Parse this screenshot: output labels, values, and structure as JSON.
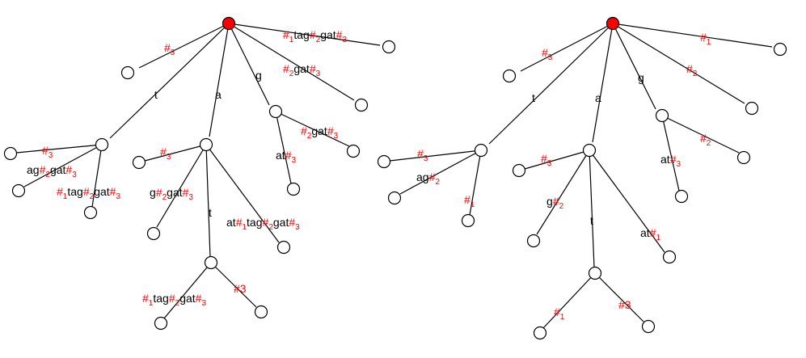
{
  "colors": {
    "marker": "#ff0000",
    "text": "#000000",
    "node_fill": "#ffffff",
    "root_fill": "#ff0000"
  },
  "trees": [
    {
      "name": "tree-left",
      "labels": [
        {
          "id": "l-s3",
          "parts": [
            [
              "r",
              "#"
            ],
            [
              "rs",
              "3"
            ]
          ]
        },
        {
          "id": "l-t",
          "parts": [
            [
              "b",
              "t"
            ]
          ]
        },
        {
          "id": "l-a",
          "parts": [
            [
              "b",
              "a"
            ]
          ]
        },
        {
          "id": "l-g",
          "parts": [
            [
              "b",
              "g"
            ]
          ]
        },
        {
          "id": "l-top",
          "parts": [
            [
              "r",
              "#"
            ],
            [
              "rs",
              "1"
            ],
            [
              "b",
              "tag"
            ],
            [
              "r",
              "#"
            ],
            [
              "rs",
              "2"
            ],
            [
              "b",
              "gat"
            ],
            [
              "r",
              "#"
            ],
            [
              "rs",
              "3"
            ]
          ]
        },
        {
          "id": "l-2gat",
          "parts": [
            [
              "r",
              "#"
            ],
            [
              "rs",
              "2"
            ],
            [
              "b",
              "gat"
            ],
            [
              "r",
              "#"
            ],
            [
              "rs",
              "3"
            ]
          ]
        },
        {
          "id": "l-t-s3",
          "parts": [
            [
              "r",
              "#"
            ],
            [
              "rs",
              "3"
            ]
          ]
        },
        {
          "id": "l-t-ag",
          "parts": [
            [
              "b",
              "ag"
            ],
            [
              "r",
              "#"
            ],
            [
              "rs",
              "2"
            ],
            [
              "b",
              "gat"
            ],
            [
              "r",
              "#"
            ],
            [
              "rs",
              "3"
            ]
          ]
        },
        {
          "id": "l-t-1tag",
          "parts": [
            [
              "r",
              "#"
            ],
            [
              "rs",
              "1"
            ],
            [
              "b",
              "tag"
            ],
            [
              "r",
              "#"
            ],
            [
              "rs",
              "2"
            ],
            [
              "b",
              "gat"
            ],
            [
              "r",
              "#"
            ],
            [
              "rs",
              "3"
            ]
          ]
        },
        {
          "id": "l-a-s3",
          "parts": [
            [
              "r",
              "#"
            ],
            [
              "rs",
              "3"
            ]
          ]
        },
        {
          "id": "l-a-g",
          "parts": [
            [
              "b",
              "g"
            ],
            [
              "r",
              "#"
            ],
            [
              "rs",
              "2"
            ],
            [
              "b",
              "gat"
            ],
            [
              "r",
              "#"
            ],
            [
              "rs",
              "3"
            ]
          ]
        },
        {
          "id": "l-a-t",
          "parts": [
            [
              "b",
              "t"
            ]
          ]
        },
        {
          "id": "l-a-at",
          "parts": [
            [
              "b",
              "at"
            ],
            [
              "r",
              "#"
            ],
            [
              "rs",
              "1"
            ],
            [
              "b",
              "tag"
            ],
            [
              "r",
              "#"
            ],
            [
              "rs",
              "2"
            ],
            [
              "b",
              "gat"
            ],
            [
              "r",
              "#"
            ],
            [
              "rs",
              "3"
            ]
          ]
        },
        {
          "id": "l-g-2gat",
          "parts": [
            [
              "r",
              "#"
            ],
            [
              "rs",
              "2"
            ],
            [
              "b",
              "gat"
            ],
            [
              "r",
              "#"
            ],
            [
              "rs",
              "3"
            ]
          ]
        },
        {
          "id": "l-g-at",
          "parts": [
            [
              "b",
              "at"
            ],
            [
              "r",
              "#"
            ],
            [
              "rs",
              "3"
            ]
          ]
        },
        {
          "id": "l-at-1tag",
          "parts": [
            [
              "r",
              "#"
            ],
            [
              "rs",
              "1"
            ],
            [
              "b",
              "tag"
            ],
            [
              "r",
              "#"
            ],
            [
              "rs",
              "2"
            ],
            [
              "b",
              "gat"
            ],
            [
              "r",
              "#"
            ],
            [
              "rs",
              "3"
            ]
          ]
        },
        {
          "id": "l-at-3",
          "parts": [
            [
              "r",
              "#3"
            ]
          ]
        }
      ]
    },
    {
      "name": "tree-right",
      "labels": [
        {
          "id": "r-s3",
          "parts": [
            [
              "r",
              "#"
            ],
            [
              "rs",
              "3"
            ]
          ]
        },
        {
          "id": "r-t",
          "parts": [
            [
              "b",
              "t"
            ]
          ]
        },
        {
          "id": "r-a",
          "parts": [
            [
              "b",
              "a"
            ]
          ]
        },
        {
          "id": "r-g",
          "parts": [
            [
              "b",
              "g"
            ]
          ]
        },
        {
          "id": "r-s1",
          "parts": [
            [
              "r",
              "#"
            ],
            [
              "rs",
              "1"
            ]
          ]
        },
        {
          "id": "r-s2",
          "parts": [
            [
              "r",
              "#"
            ],
            [
              "rs",
              "2"
            ]
          ]
        },
        {
          "id": "r-t-s3",
          "parts": [
            [
              "r",
              "#"
            ],
            [
              "rs",
              "3"
            ]
          ]
        },
        {
          "id": "r-t-ag",
          "parts": [
            [
              "b",
              "ag"
            ],
            [
              "r",
              "#"
            ],
            [
              "rs",
              "2"
            ]
          ]
        },
        {
          "id": "r-t-s1",
          "parts": [
            [
              "r",
              "#"
            ],
            [
              "rs",
              "1"
            ]
          ]
        },
        {
          "id": "r-a-s3",
          "parts": [
            [
              "r",
              "#"
            ],
            [
              "rs",
              "3"
            ]
          ]
        },
        {
          "id": "r-a-g",
          "parts": [
            [
              "b",
              "g"
            ],
            [
              "r",
              "#"
            ],
            [
              "rs",
              "2"
            ]
          ]
        },
        {
          "id": "r-a-t",
          "parts": [
            [
              "b",
              "t"
            ]
          ]
        },
        {
          "id": "r-a-at",
          "parts": [
            [
              "b",
              "at"
            ],
            [
              "r",
              "#"
            ],
            [
              "rs",
              "1"
            ]
          ]
        },
        {
          "id": "r-g-s2",
          "parts": [
            [
              "r",
              "#"
            ],
            [
              "rs",
              "2"
            ]
          ]
        },
        {
          "id": "r-g-at",
          "parts": [
            [
              "b",
              "at"
            ],
            [
              "r",
              "#"
            ],
            [
              "rs",
              "3"
            ]
          ]
        },
        {
          "id": "r-at-1",
          "parts": [
            [
              "r",
              "#"
            ],
            [
              "rs",
              "1"
            ]
          ]
        },
        {
          "id": "r-at-3",
          "parts": [
            [
              "r",
              "#3"
            ]
          ]
        }
      ]
    }
  ]
}
